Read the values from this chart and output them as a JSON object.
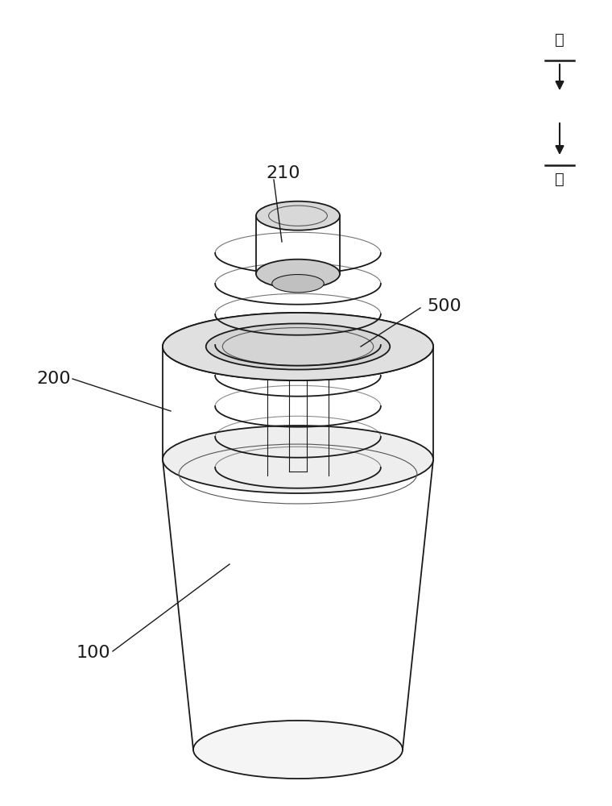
{
  "fig_width": 7.6,
  "fig_height": 10.0,
  "dpi": 100,
  "bg_color": "#ffffff",
  "line_color": "#1a1a1a",
  "line_color_light": "#555555",
  "label_100": "100",
  "label_200": "200",
  "label_210": "210",
  "label_500": "500",
  "label_up": "上",
  "label_down": "下"
}
